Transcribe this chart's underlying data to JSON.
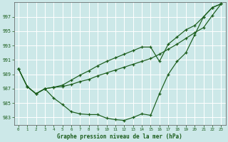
{
  "background_color": "#cce8e8",
  "plot_bg_color": "#cce8e8",
  "grid_color": "#ffffff",
  "line_color": "#1a5c1a",
  "ylim": [
    982.0,
    999.0
  ],
  "xlim": [
    -0.5,
    23.5
  ],
  "yticks": [
    983,
    985,
    987,
    989,
    991,
    993,
    995,
    997
  ],
  "xticks": [
    0,
    1,
    2,
    3,
    4,
    5,
    6,
    7,
    8,
    9,
    10,
    11,
    12,
    13,
    14,
    15,
    16,
    17,
    18,
    19,
    20,
    21,
    22,
    23
  ],
  "xlabel": "Graphe pression niveau de la mer (hPa)",
  "line1": [
    989.8,
    987.3,
    986.3,
    987.0,
    985.7,
    984.8,
    983.8,
    983.5,
    983.4,
    983.4,
    982.9,
    982.7,
    982.6,
    983.0,
    983.5,
    983.3,
    986.3,
    989.0,
    990.8,
    992.0,
    994.5,
    997.0,
    998.3,
    998.8
  ],
  "line2": [
    989.8,
    987.3,
    986.3,
    987.0,
    987.2,
    987.3,
    987.6,
    988.0,
    988.3,
    988.8,
    989.2,
    989.6,
    990.0,
    990.4,
    990.8,
    991.2,
    991.8,
    992.5,
    993.2,
    994.0,
    994.8,
    995.5,
    997.2,
    998.8
  ],
  "line3": [
    989.8,
    987.3,
    986.3,
    987.0,
    987.2,
    987.5,
    988.2,
    988.9,
    989.5,
    990.2,
    990.8,
    991.3,
    991.8,
    992.3,
    992.8,
    992.8,
    990.8,
    993.2,
    994.2,
    995.2,
    995.8,
    997.0,
    998.3,
    998.8
  ]
}
